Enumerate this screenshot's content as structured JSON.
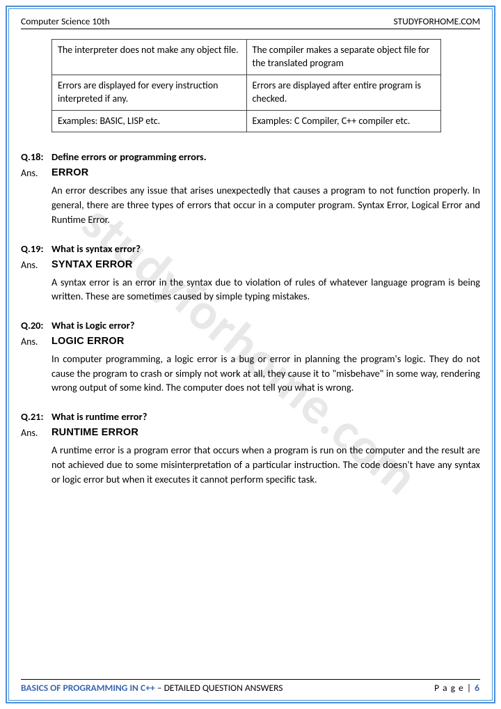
{
  "header": {
    "left": "Computer Science 10th",
    "right": "STUDYFORHOME.COM"
  },
  "watermark": "studyforhome.com",
  "table": {
    "rows": [
      [
        "The interpreter does not make any object file.",
        "The compiler makes a separate object file for the translated program"
      ],
      [
        "Errors are displayed for every instruction interpreted if any.",
        "Errors are displayed after entire program is checked."
      ],
      [
        "Examples: BASIC, LISP etc.",
        "Examples: C Compiler, C++ compiler etc."
      ]
    ]
  },
  "qa": [
    {
      "num": "Q.18:",
      "question": "Define errors or programming errors.",
      "heading": "ERROR",
      "body": "An error describes any issue that arises unexpectedly that causes a program to not function properly. In general, there are three types of errors that occur in a computer program. Syntax Error, Logical Error and Runtime Error."
    },
    {
      "num": "Q.19:",
      "question": "What is syntax error?",
      "heading": "SYNTAX ERROR",
      "body": "A syntax error is an error in the syntax due to violation of rules of whatever language program is being written. These are sometimes caused by simple typing mistakes."
    },
    {
      "num": "Q.20:",
      "question": "What is Logic error?",
      "heading": "LOGIC ERROR",
      "body": "In computer programming, a logic error is a bug or error in planning the program's logic. They do not cause the program to crash or simply not work at all, they cause it to \"misbehave\" in some way, rendering wrong output of some kind. The computer does not tell you what is wrong."
    },
    {
      "num": "Q.21:",
      "question": "What is runtime error?",
      "heading": "RUNTIME ERROR",
      "body": "A runtime error is a program error that occurs when a program is run on the computer and the result are not achieved due to some misinterpretation of a particular instruction. The code doesn't have any syntax or logic error but when it executes it cannot perform specific task."
    }
  ],
  "ansLabel": "Ans.",
  "footer": {
    "title_bold": "BASICS OF PROGRAMMING IN C++",
    "title_reg": " – DETAILED QUESTION ANSWERS",
    "page_label": "P a g e  | ",
    "page_num": "6"
  }
}
